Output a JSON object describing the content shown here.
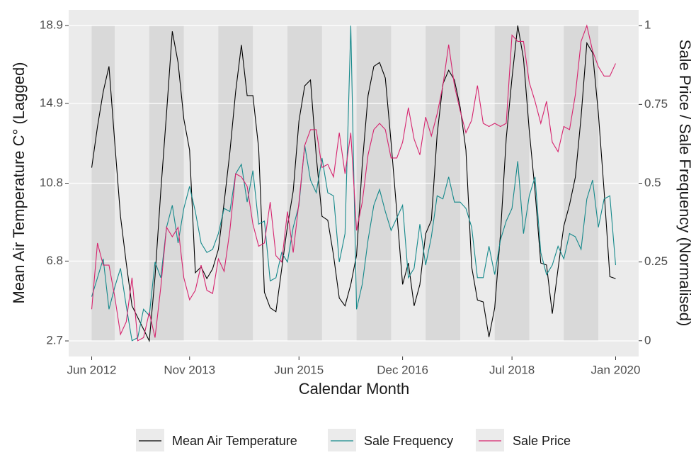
{
  "chart_data": {
    "type": "line",
    "x_label": "Calendar Month",
    "y_label": "Mean Air Temperature C° (Lagged)",
    "y2_label": "Sale Price / Sale Frequency (Normalised)",
    "x": [
      "2012-06",
      "2012-07",
      "2012-08",
      "2012-09",
      "2012-10",
      "2012-11",
      "2012-12",
      "2013-01",
      "2013-02",
      "2013-03",
      "2013-04",
      "2013-05",
      "2013-06",
      "2013-07",
      "2013-08",
      "2013-09",
      "2013-10",
      "2013-11",
      "2013-12",
      "2014-01",
      "2014-02",
      "2014-03",
      "2014-04",
      "2014-05",
      "2014-06",
      "2014-07",
      "2014-08",
      "2014-09",
      "2014-10",
      "2014-11",
      "2014-12",
      "2015-01",
      "2015-02",
      "2015-03",
      "2015-04",
      "2015-05",
      "2015-06",
      "2015-07",
      "2015-08",
      "2015-09",
      "2015-10",
      "2015-11",
      "2015-12",
      "2016-01",
      "2016-02",
      "2016-03",
      "2016-04",
      "2016-05",
      "2016-06",
      "2016-07",
      "2016-08",
      "2016-09",
      "2016-10",
      "2016-11",
      "2016-12",
      "2017-01",
      "2017-02",
      "2017-03",
      "2017-04",
      "2017-05",
      "2017-06",
      "2017-07",
      "2017-08",
      "2017-09",
      "2017-10",
      "2017-11",
      "2017-12",
      "2018-01",
      "2018-02",
      "2018-03",
      "2018-04",
      "2018-05",
      "2018-06",
      "2018-07",
      "2018-08",
      "2018-09",
      "2018-10",
      "2018-11",
      "2018-12",
      "2019-01",
      "2019-02",
      "2019-03",
      "2019-04",
      "2019-05",
      "2019-06",
      "2019-07",
      "2019-08",
      "2019-09",
      "2019-10",
      "2019-11",
      "2019-12",
      "2020-01"
    ],
    "series": [
      {
        "name": "Mean Air Temperature",
        "color": "#000000",
        "values": [
          11.6,
          13.7,
          15.5,
          16.8,
          12.9,
          9.1,
          6.7,
          4.5,
          3.9,
          3.3,
          2.7,
          6.0,
          10.4,
          14.4,
          18.6,
          17.0,
          14.1,
          12.5,
          6.2,
          6.5,
          5.9,
          6.4,
          7.4,
          9.8,
          12.4,
          15.5,
          17.9,
          15.3,
          15.3,
          12.6,
          5.2,
          4.4,
          4.2,
          6.4,
          8.6,
          10.4,
          14.0,
          15.8,
          16.1,
          12.2,
          9.1,
          8.9,
          7.1,
          4.9,
          4.5,
          5.6,
          7.1,
          11.8,
          15.3,
          16.8,
          17.0,
          16.2,
          12.9,
          9.3,
          5.6,
          6.7,
          4.5,
          5.6,
          8.2,
          8.9,
          13.3,
          15.9,
          16.6,
          16.1,
          14.7,
          12.5,
          6.5,
          4.8,
          4.7,
          2.9,
          4.4,
          8.2,
          13.1,
          16.2,
          18.9,
          17.2,
          13.5,
          10.4,
          6.7,
          6.6,
          4.1,
          6.4,
          8.6,
          9.7,
          11.1,
          14.2,
          18.0,
          17.5,
          14.4,
          10.4,
          6.0,
          5.9
        ]
      },
      {
        "name": "Sale Frequency",
        "color": "#15898b",
        "axis": "y2",
        "values": [
          0.14,
          0.2,
          0.26,
          0.1,
          0.17,
          0.23,
          0.11,
          0.0,
          0.01,
          0.1,
          0.08,
          0.25,
          0.2,
          0.36,
          0.43,
          0.31,
          0.42,
          0.49,
          0.41,
          0.31,
          0.28,
          0.29,
          0.34,
          0.42,
          0.41,
          0.53,
          0.56,
          0.44,
          0.54,
          0.37,
          0.38,
          0.19,
          0.2,
          0.28,
          0.25,
          0.36,
          0.43,
          0.62,
          0.51,
          0.47,
          0.58,
          0.47,
          0.46,
          0.25,
          0.34,
          1.0,
          0.1,
          0.18,
          0.32,
          0.43,
          0.48,
          0.41,
          0.35,
          0.39,
          0.43,
          0.2,
          0.23,
          0.37,
          0.24,
          0.33,
          0.46,
          0.45,
          0.52,
          0.44,
          0.44,
          0.42,
          0.36,
          0.2,
          0.2,
          0.3,
          0.21,
          0.32,
          0.38,
          0.42,
          0.57,
          0.34,
          0.46,
          0.52,
          0.28,
          0.21,
          0.24,
          0.3,
          0.26,
          0.34,
          0.33,
          0.29,
          0.45,
          0.51,
          0.36,
          0.45,
          0.46,
          0.24
        ]
      },
      {
        "name": "Sale Price",
        "color": "#d6246e",
        "axis": "y2",
        "values": [
          0.1,
          0.31,
          0.24,
          0.24,
          0.14,
          0.02,
          0.06,
          0.2,
          0.0,
          0.01,
          0.09,
          0.01,
          0.17,
          0.36,
          0.33,
          0.36,
          0.2,
          0.13,
          0.16,
          0.24,
          0.16,
          0.15,
          0.26,
          0.22,
          0.35,
          0.53,
          0.52,
          0.49,
          0.37,
          0.3,
          0.31,
          0.44,
          0.27,
          0.25,
          0.41,
          0.28,
          0.44,
          0.62,
          0.67,
          0.67,
          0.55,
          0.56,
          0.52,
          0.66,
          0.53,
          0.66,
          0.35,
          0.44,
          0.59,
          0.67,
          0.69,
          0.67,
          0.58,
          0.58,
          0.63,
          0.74,
          0.64,
          0.59,
          0.71,
          0.65,
          0.72,
          0.81,
          0.94,
          0.81,
          0.73,
          0.66,
          0.7,
          0.81,
          0.69,
          0.68,
          0.69,
          0.68,
          0.69,
          0.97,
          0.95,
          0.95,
          0.82,
          0.76,
          0.69,
          0.76,
          0.63,
          0.6,
          0.68,
          0.67,
          0.78,
          0.95,
          1.0,
          0.92,
          0.87,
          0.84,
          0.84,
          0.88
        ]
      }
    ],
    "shaded_periods": [
      [
        "2012-06",
        "2012-10"
      ],
      [
        "2013-04",
        "2013-10"
      ],
      [
        "2014-04",
        "2014-10"
      ],
      [
        "2015-04",
        "2015-10"
      ],
      [
        "2016-04",
        "2016-10"
      ],
      [
        "2017-04",
        "2017-10"
      ],
      [
        "2018-04",
        "2018-10"
      ],
      [
        "2019-04",
        "2019-10"
      ]
    ],
    "xlim": [
      "2012-02",
      "2020-05"
    ],
    "xticks": [
      {
        "value": "2012-06",
        "label": "Jun 2012"
      },
      {
        "value": "2013-11",
        "label": "Nov 2013"
      },
      {
        "value": "2015-06",
        "label": "Jun 2015"
      },
      {
        "value": "2016-12",
        "label": "Dec 2016"
      },
      {
        "value": "2018-07",
        "label": "Jul 2018"
      },
      {
        "value": "2020-01",
        "label": "Jan 2020"
      }
    ],
    "ylim": [
      1.9,
      19.7
    ],
    "yticks": [
      2.7,
      6.8,
      10.8,
      14.9,
      18.9
    ],
    "y2lim": [
      -0.05,
      1.05
    ],
    "y2ticks": [
      0,
      0.25,
      0.5,
      0.75,
      1
    ],
    "grid": true,
    "legend": "bottom"
  }
}
